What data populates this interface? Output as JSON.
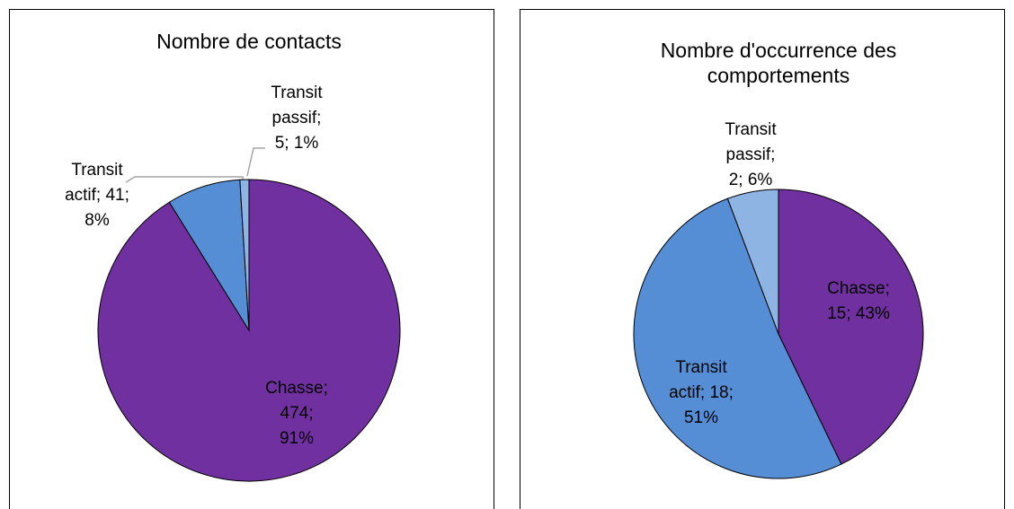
{
  "chart_data": [
    {
      "type": "pie",
      "title": [
        "Nombre de contacts"
      ],
      "categories": [
        "Chasse",
        "Transit actif",
        "Transit passif"
      ],
      "values": [
        474,
        41,
        5
      ],
      "value_labels": [
        [
          "Chasse;",
          "474;",
          "91%"
        ],
        [
          "Transit",
          "actif; 41;",
          "8%"
        ],
        [
          "Transit",
          "passif;",
          "5; 1%"
        ]
      ],
      "colors": [
        "#7030a0",
        "#558ed5",
        "#8eb4e3"
      ]
    },
    {
      "type": "pie",
      "title": [
        "Nombre d'occurrence des",
        "comportements"
      ],
      "categories": [
        "Chasse",
        "Transit actif",
        "Transit passif"
      ],
      "values": [
        15,
        18,
        2
      ],
      "value_labels": [
        [
          "Chasse;",
          "15; 43%"
        ],
        [
          "Transit",
          "actif; 18;",
          "51%"
        ],
        [
          "Transit",
          "passif;",
          "2; 6%"
        ]
      ],
      "colors": [
        "#7030a0",
        "#558ed5",
        "#8eb4e3"
      ]
    }
  ]
}
